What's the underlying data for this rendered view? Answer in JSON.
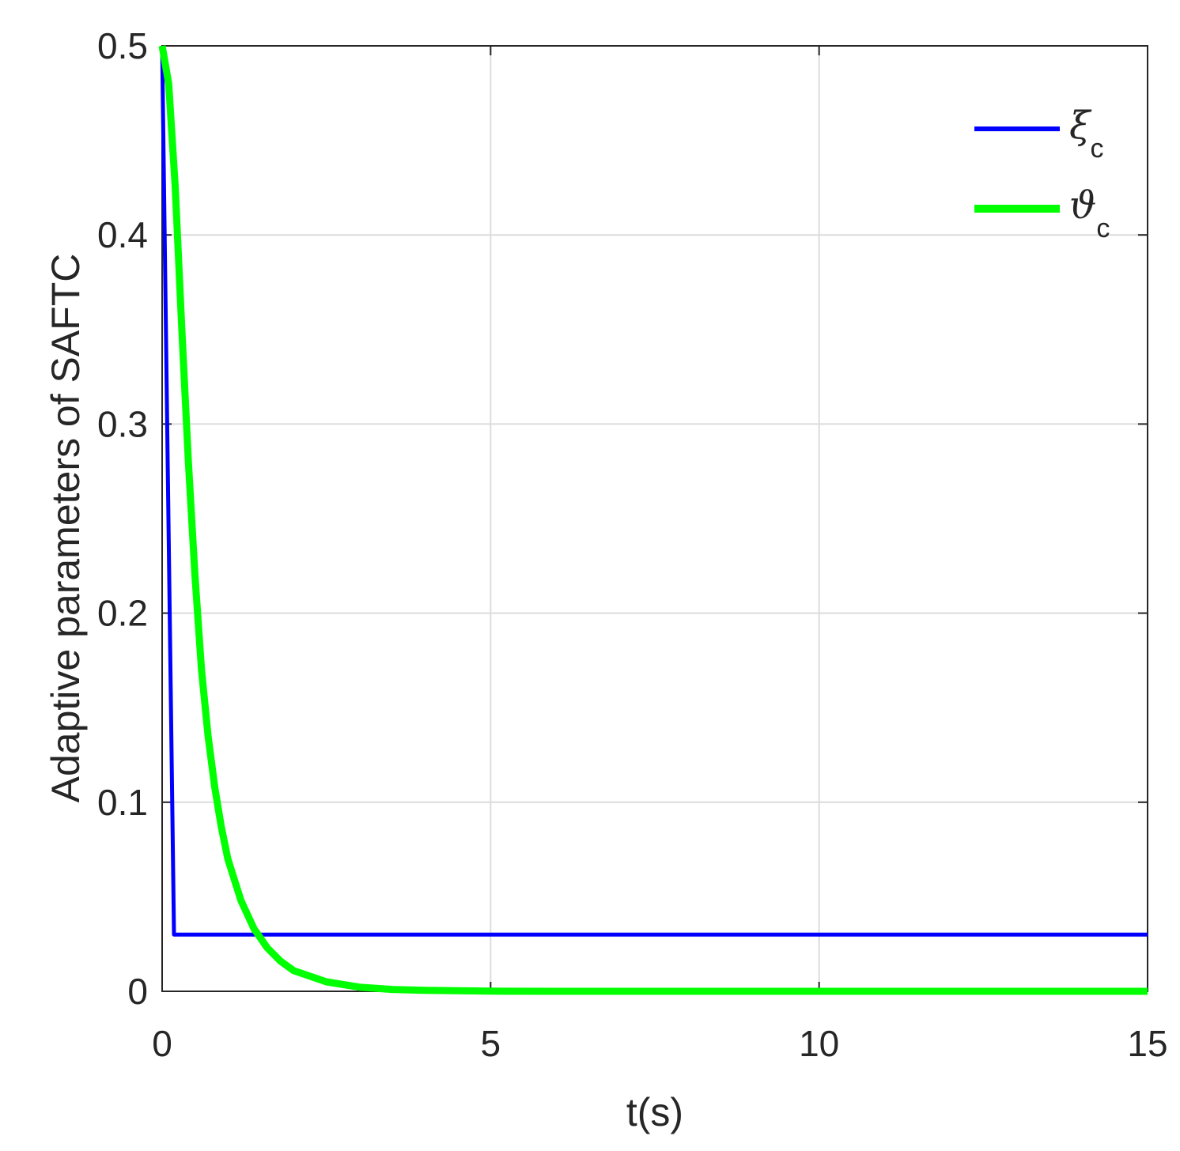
{
  "chart_data": {
    "type": "line",
    "title": "",
    "xlabel": "t(s)",
    "ylabel": "Adaptive parameters of SAFTC",
    "xlim": [
      0,
      15
    ],
    "ylim": [
      0,
      0.5
    ],
    "xticks": [
      0,
      5,
      10,
      15
    ],
    "xtick_labels": [
      "0",
      "5",
      "10",
      "15"
    ],
    "yticks": [
      0,
      0.1,
      0.2,
      0.3,
      0.4,
      0.5
    ],
    "ytick_labels": [
      "0",
      "0.1",
      "0.2",
      "0.3",
      "0.4",
      "0.5"
    ],
    "grid": true,
    "legend_position": "top-right",
    "series": [
      {
        "name": "ξ",
        "name_sub": "c",
        "color": "#0000ff",
        "x": [
          0,
          0.18,
          15
        ],
        "y": [
          0.5,
          0.03,
          0.03
        ]
      },
      {
        "name": "ϑ",
        "name_sub": "c",
        "color": "#00ff00",
        "x": [
          0,
          0.1,
          0.2,
          0.3,
          0.4,
          0.5,
          0.6,
          0.7,
          0.8,
          0.9,
          1.0,
          1.2,
          1.4,
          1.6,
          1.8,
          2.0,
          2.5,
          3.0,
          3.5,
          4.0,
          5.0,
          6.0,
          8.0,
          10.0,
          12.0,
          15.0
        ],
        "y": [
          0.5,
          0.48,
          0.425,
          0.35,
          0.28,
          0.22,
          0.17,
          0.135,
          0.108,
          0.087,
          0.07,
          0.048,
          0.033,
          0.023,
          0.016,
          0.011,
          0.005,
          0.0022,
          0.001,
          0.0005,
          0.0001,
          0,
          0,
          0,
          0,
          0
        ]
      }
    ]
  }
}
